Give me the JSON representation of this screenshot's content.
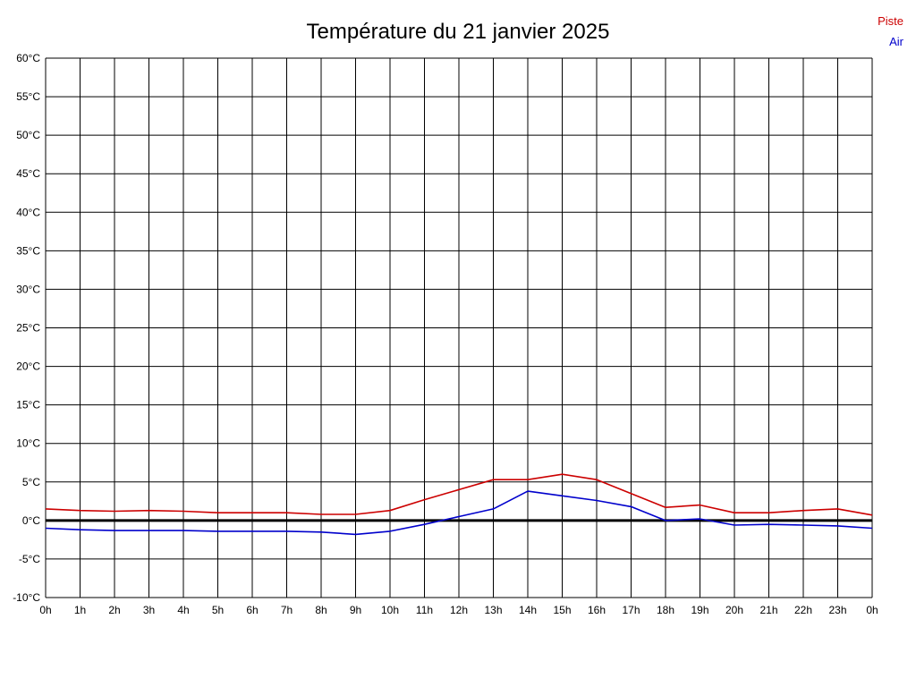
{
  "title": "Température du 21 janvier 2025",
  "legend": {
    "piste_label": "Piste",
    "air_label": "Air"
  },
  "colors": {
    "piste": "#cc0000",
    "air": "#0000cc",
    "grid": "#000000",
    "zero_line": "#000000",
    "background": "#ffffff"
  },
  "chart_data": {
    "type": "line",
    "title": "Température du 21 janvier 2025",
    "xlabel": "",
    "ylabel": "",
    "ylim": [
      -10,
      60
    ],
    "y_tick_step": 5,
    "y_tick_labels": [
      "60°C",
      "55°C",
      "50°C",
      "45°C",
      "40°C",
      "35°C",
      "30°C",
      "25°C",
      "20°C",
      "15°C",
      "10°C",
      "5°C",
      "0°C",
      "-5°C",
      "-10°C"
    ],
    "x_tick_labels": [
      "0h",
      "1h",
      "2h",
      "3h",
      "4h",
      "5h",
      "6h",
      "7h",
      "8h",
      "9h",
      "10h",
      "11h",
      "12h",
      "13h",
      "14h",
      "15h",
      "16h",
      "17h",
      "18h",
      "19h",
      "20h",
      "21h",
      "22h",
      "23h",
      "0h"
    ],
    "grid": true,
    "legend_position": "top-right",
    "x_hours": [
      0,
      1,
      2,
      3,
      4,
      5,
      6,
      7,
      8,
      9,
      10,
      11,
      12,
      13,
      14,
      15,
      16,
      17,
      18,
      19,
      20,
      21,
      22,
      23,
      24
    ],
    "series": [
      {
        "name": "Piste",
        "color": "#cc0000",
        "values": [
          1.5,
          1.3,
          1.2,
          1.3,
          1.2,
          1.0,
          1.0,
          1.0,
          0.8,
          0.8,
          1.3,
          2.7,
          4.0,
          5.3,
          5.3,
          6.0,
          5.3,
          3.5,
          1.7,
          2.0,
          1.0,
          1.0,
          1.3,
          1.5,
          0.7
        ]
      },
      {
        "name": "Air",
        "color": "#0000cc",
        "values": [
          -1.0,
          -1.2,
          -1.3,
          -1.3,
          -1.3,
          -1.4,
          -1.4,
          -1.4,
          -1.5,
          -1.8,
          -1.4,
          -0.5,
          0.5,
          1.5,
          3.8,
          3.2,
          2.6,
          1.8,
          0.0,
          0.2,
          -0.6,
          -0.5,
          -0.6,
          -0.7,
          -1.0
        ]
      }
    ]
  }
}
